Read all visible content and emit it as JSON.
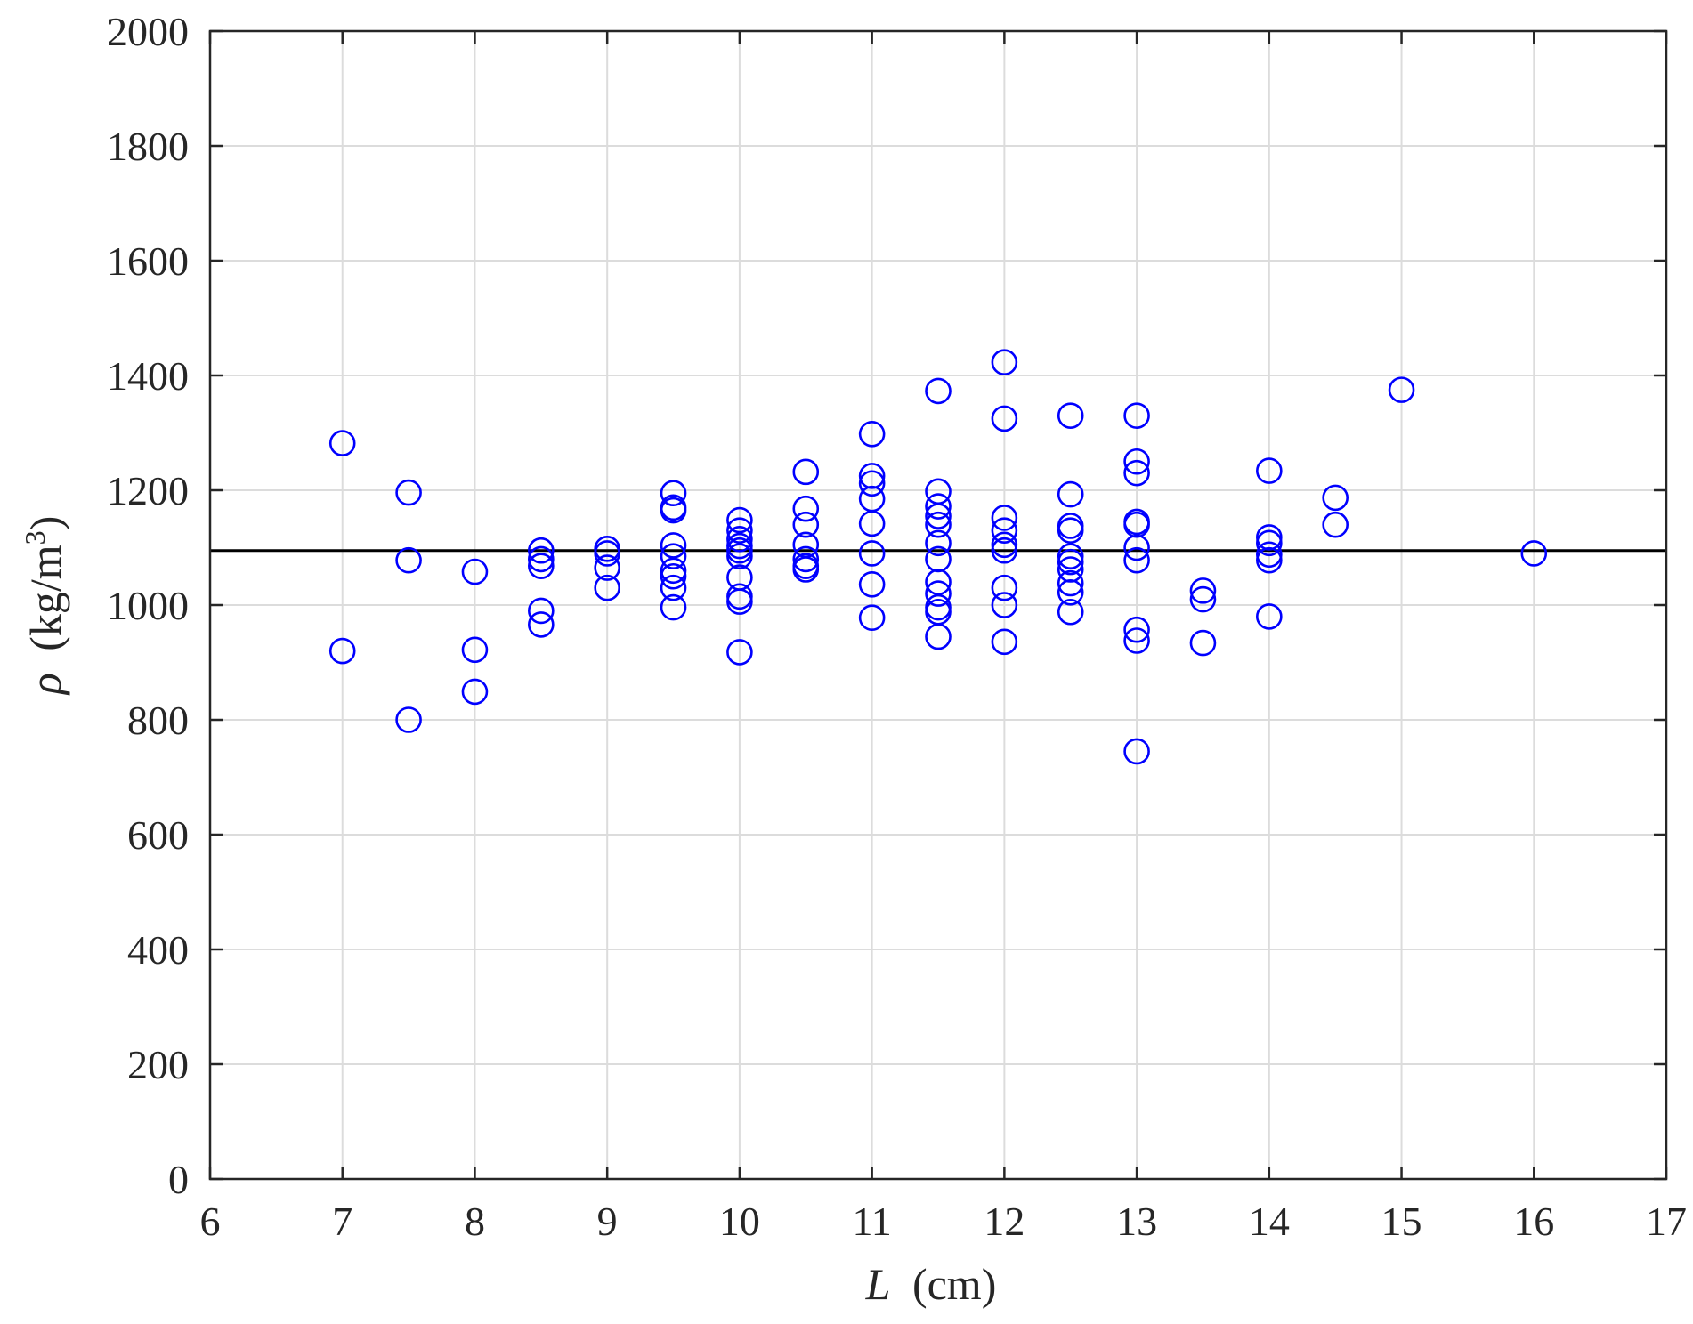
{
  "chart_data": {
    "type": "scatter",
    "title": "",
    "xlabel": {
      "symbol": "L",
      "unit": "(cm)"
    },
    "ylabel": {
      "symbol": "ρ",
      "unit_base": "(kg/m",
      "unit_exp": "3",
      "unit_close": ")"
    },
    "xlim": [
      6,
      17
    ],
    "ylim": [
      0,
      2000
    ],
    "xticks": [
      6,
      7,
      8,
      9,
      10,
      11,
      12,
      13,
      14,
      15,
      16,
      17
    ],
    "yticks": [
      0,
      200,
      400,
      600,
      800,
      1000,
      1200,
      1400,
      1600,
      1800,
      2000
    ],
    "grid": true,
    "marker": "open-circle",
    "colors": {
      "marker": "#0000ff",
      "reference_line": "#000000",
      "grid": "#dcdcdc",
      "axes": "#262626"
    },
    "reference_line": {
      "y": 1095
    },
    "series": [
      {
        "points": [
          [
            7,
            1282
          ],
          [
            7,
            920
          ],
          [
            7.5,
            1196
          ],
          [
            7.5,
            1078
          ],
          [
            7.5,
            800
          ],
          [
            8,
            1058
          ],
          [
            8,
            922
          ],
          [
            8,
            849
          ],
          [
            8.5,
            1095
          ],
          [
            8.5,
            1080
          ],
          [
            8.5,
            1068
          ],
          [
            8.5,
            990
          ],
          [
            8.5,
            966
          ],
          [
            9,
            1098
          ],
          [
            9,
            1090
          ],
          [
            9,
            1065
          ],
          [
            9,
            1030
          ],
          [
            9.5,
            1195
          ],
          [
            9.5,
            1170
          ],
          [
            9.5,
            1165
          ],
          [
            9.5,
            1104
          ],
          [
            9.5,
            1085
          ],
          [
            9.5,
            1060
          ],
          [
            9.5,
            1050
          ],
          [
            9.5,
            1030
          ],
          [
            9.5,
            996
          ],
          [
            10,
            1148
          ],
          [
            10,
            1130
          ],
          [
            10,
            1115
          ],
          [
            10,
            1103
          ],
          [
            10,
            1095
          ],
          [
            10,
            1085
          ],
          [
            10,
            1048
          ],
          [
            10,
            1015
          ],
          [
            10,
            1006
          ],
          [
            10,
            918
          ],
          [
            10.5,
            1232
          ],
          [
            10.5,
            1168
          ],
          [
            10.5,
            1140
          ],
          [
            10.5,
            1105
          ],
          [
            10.5,
            1080
          ],
          [
            10.5,
            1068
          ],
          [
            10.5,
            1062
          ],
          [
            11,
            1298
          ],
          [
            11,
            1225
          ],
          [
            11,
            1212
          ],
          [
            11,
            1185
          ],
          [
            11,
            1142
          ],
          [
            11,
            1090
          ],
          [
            11,
            1036
          ],
          [
            11,
            978
          ],
          [
            11.5,
            1373
          ],
          [
            11.5,
            1198
          ],
          [
            11.5,
            1172
          ],
          [
            11.5,
            1155
          ],
          [
            11.5,
            1140
          ],
          [
            11.5,
            1108
          ],
          [
            11.5,
            1080
          ],
          [
            11.5,
            1040
          ],
          [
            11.5,
            1020
          ],
          [
            11.5,
            996
          ],
          [
            11.5,
            988
          ],
          [
            11.5,
            945
          ],
          [
            12,
            1423
          ],
          [
            12,
            1325
          ],
          [
            12,
            1152
          ],
          [
            12,
            1130
          ],
          [
            12,
            1105
          ],
          [
            12,
            1095
          ],
          [
            12,
            1030
          ],
          [
            12,
            1000
          ],
          [
            12,
            936
          ],
          [
            12.5,
            1330
          ],
          [
            12.5,
            1193
          ],
          [
            12.5,
            1138
          ],
          [
            12.5,
            1130
          ],
          [
            12.5,
            1085
          ],
          [
            12.5,
            1075
          ],
          [
            12.5,
            1062
          ],
          [
            12.5,
            1038
          ],
          [
            12.5,
            1022
          ],
          [
            12.5,
            988
          ],
          [
            13,
            1330
          ],
          [
            13,
            1250
          ],
          [
            13,
            1230
          ],
          [
            13,
            1145
          ],
          [
            13,
            1140
          ],
          [
            13,
            1100
          ],
          [
            13,
            1078
          ],
          [
            13,
            957
          ],
          [
            13,
            938
          ],
          [
            13,
            745
          ],
          [
            13.5,
            1025
          ],
          [
            13.5,
            1010
          ],
          [
            13.5,
            934
          ],
          [
            14,
            1234
          ],
          [
            14,
            1118
          ],
          [
            14,
            1108
          ],
          [
            14,
            1088
          ],
          [
            14,
            1078
          ],
          [
            14,
            980
          ],
          [
            14.5,
            1187
          ],
          [
            14.5,
            1140
          ],
          [
            15,
            1375
          ],
          [
            16,
            1090
          ]
        ]
      }
    ]
  }
}
